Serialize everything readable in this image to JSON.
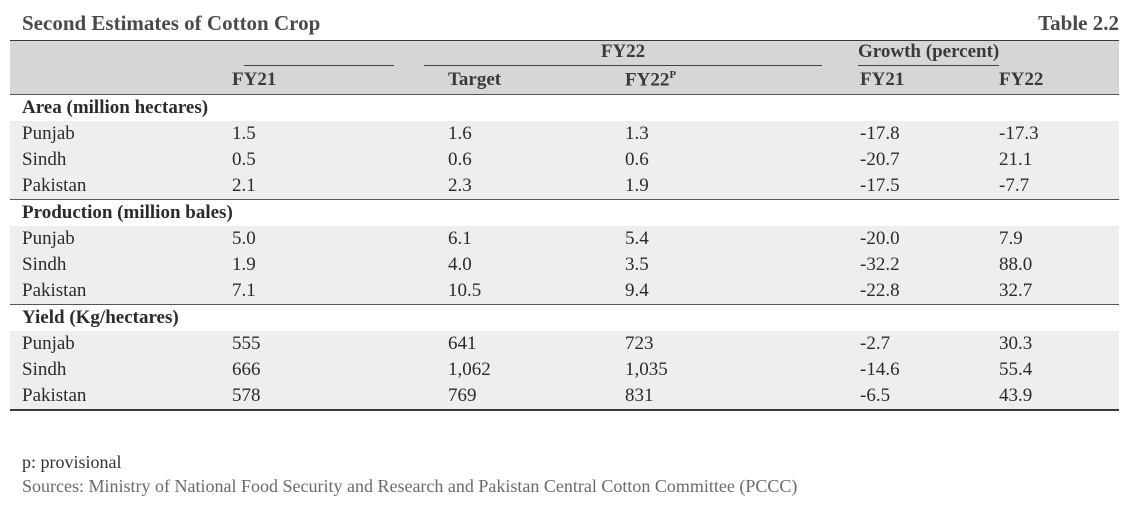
{
  "header": {
    "title": "Second Estimates of Cotton Crop",
    "table_number": "Table 2.2"
  },
  "columns": {
    "group_fy22": "FY22",
    "group_growth": "Growth (percent)",
    "fy21": "FY21",
    "target": "Target",
    "fy22p_base": "FY22",
    "fy22p_sup": "P",
    "growth_fy21": "FY21",
    "growth_fy22": "FY22"
  },
  "sections": [
    {
      "title": "Area (million hectares)",
      "rows": [
        {
          "label": "Punjab",
          "fy21": "1.5",
          "target": "1.6",
          "fy22p": "1.3",
          "growth_fy21": "-17.8",
          "growth_fy22": "-17.3"
        },
        {
          "label": "Sindh",
          "fy21": "0.5",
          "target": "0.6",
          "fy22p": "0.6",
          "growth_fy21": "-20.7",
          "growth_fy22": "21.1"
        },
        {
          "label": "Pakistan",
          "fy21": "2.1",
          "target": "2.3",
          "fy22p": "1.9",
          "growth_fy21": "-17.5",
          "growth_fy22": "-7.7"
        }
      ]
    },
    {
      "title": "Production (million bales)",
      "rows": [
        {
          "label": "Punjab",
          "fy21": "5.0",
          "target": "6.1",
          "fy22p": "5.4",
          "growth_fy21": "-20.0",
          "growth_fy22": "7.9"
        },
        {
          "label": "Sindh",
          "fy21": "1.9",
          "target": "4.0",
          "fy22p": "3.5",
          "growth_fy21": "-32.2",
          "growth_fy22": "88.0"
        },
        {
          "label": "Pakistan",
          "fy21": "7.1",
          "target": "10.5",
          "fy22p": "9.4",
          "growth_fy21": "-22.8",
          "growth_fy22": "32.7"
        }
      ]
    },
    {
      "title": "Yield (Kg/hectares)",
      "rows": [
        {
          "label": "Punjab",
          "fy21": "555",
          "target": "641",
          "fy22p": "723",
          "growth_fy21": "-2.7",
          "growth_fy22": "30.3"
        },
        {
          "label": "Sindh",
          "fy21": "666",
          "target": "1,062",
          "fy22p": "1,035",
          "growth_fy21": "-14.6",
          "growth_fy22": "55.4"
        },
        {
          "label": "Pakistan",
          "fy21": "578",
          "target": "769",
          "fy22p": "831",
          "growth_fy21": "-6.5",
          "growth_fy22": "43.9"
        }
      ]
    }
  ],
  "notes": {
    "provisional": "p: provisional",
    "sources": "Sources: Ministry of National Food Security and Research and Pakistan Central Cotton Committee (PCCC)"
  }
}
